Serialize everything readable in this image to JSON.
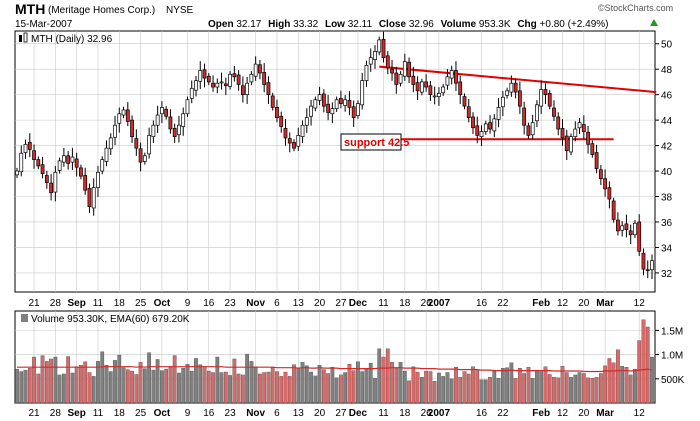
{
  "header": {
    "symbol": "MTH",
    "company": "(Meritage Homes Corp.)",
    "exchange": "NYSE",
    "date": "15-Mar-2007",
    "watermark": "©StockCharts.com",
    "stats": [
      {
        "label": "Open",
        "value": "32.17"
      },
      {
        "label": "High",
        "value": "33.32"
      },
      {
        "label": "Low",
        "value": "32.11"
      },
      {
        "label": "Close",
        "value": "32.96"
      },
      {
        "label": "Volume",
        "value": "953.3K"
      },
      {
        "label": "Chg",
        "value": "+0.80 (+2.49%)"
      }
    ],
    "chg_arrow": "up-triangle-icon"
  },
  "price_panel": {
    "legend": "MTH (Daily) 32.96",
    "legend_icon": "candlestick-icon",
    "y_ticks": [
      "32",
      "34",
      "36",
      "38",
      "40",
      "42",
      "44",
      "46",
      "48",
      "50"
    ],
    "annotation": "support 42.5"
  },
  "volume_panel": {
    "legend": "Volume 953.30K, EMA(60) 679.20K",
    "y_ticks": [
      "500K",
      "1.0M",
      "1.5M"
    ]
  },
  "x_axis": {
    "labels": [
      "21",
      "28",
      "Sep",
      "11",
      "18",
      "25",
      "Oct",
      "9",
      "16",
      "23",
      "Nov",
      "6",
      "13",
      "20",
      "27",
      "Dec",
      "11",
      "18",
      "26",
      "2007",
      "16",
      "22",
      "Feb",
      "12",
      "20",
      "Mar",
      "12"
    ],
    "bold_labels": [
      "Sep",
      "Oct",
      "Nov",
      "Dec",
      "2007",
      "Feb",
      "Mar"
    ]
  },
  "colors": {
    "up": "#ffffff",
    "down": "#d42a2a",
    "candle_outline": "#000000",
    "volume_up": "#808080",
    "volume_down": "#d96a6a",
    "ema": "#d42a2a",
    "trendline": "#e00000",
    "annotation_text": "#e00000",
    "grid": "#c8c8c8"
  },
  "chart_data": [
    {
      "type": "candlestick",
      "title": "MTH (Daily)",
      "ylim": [
        30.5,
        51
      ],
      "y_ticks": [
        32,
        34,
        36,
        38,
        40,
        42,
        44,
        46,
        48,
        50
      ],
      "x_ticks": [
        "21",
        "28",
        "Sep",
        "11",
        "18",
        "25",
        "Oct",
        "9",
        "16",
        "23",
        "Nov",
        "6",
        "13",
        "20",
        "27",
        "Dec",
        "11",
        "18",
        "26",
        "2007",
        "16",
        "22",
        "Feb",
        "12",
        "20",
        "Mar",
        "12"
      ],
      "grid": true,
      "close": [
        40.0,
        41.4,
        42.1,
        41.7,
        40.9,
        40.4,
        39.8,
        39.1,
        38.3,
        39.9,
        40.8,
        41.2,
        40.6,
        41.1,
        40.3,
        39.6,
        38.5,
        37.2,
        38.7,
        39.9,
        40.9,
        41.8,
        42.6,
        43.6,
        44.5,
        44.8,
        43.9,
        42.7,
        41.8,
        40.7,
        41.2,
        42.8,
        43.6,
        44.4,
        45.0,
        44.3,
        43.3,
        42.7,
        43.6,
        44.5,
        45.6,
        46.5,
        47.1,
        47.9,
        47.3,
        47.0,
        46.6,
        46.9,
        47.0,
        46.7,
        47.6,
        47.4,
        46.8,
        46.0,
        46.9,
        47.6,
        48.4,
        47.7,
        46.8,
        46.0,
        45.0,
        44.2,
        43.5,
        42.6,
        42.2,
        41.8,
        42.8,
        43.6,
        44.2,
        45.1,
        45.6,
        46.0,
        45.1,
        44.6,
        44.9,
        45.6,
        45.3,
        45.6,
        45.0,
        44.2,
        45.3,
        47.1,
        48.3,
        48.9,
        49.4,
        50.3,
        48.9,
        48.1,
        47.7,
        46.8,
        47.6,
        48.6,
        47.4,
        46.8,
        46.3,
        47.0,
        46.6,
        46.0,
        45.9,
        46.1,
        46.6,
        47.4,
        47.9,
        46.9,
        46.0,
        45.1,
        44.2,
        43.4,
        42.8,
        43.1,
        43.7,
        43.3,
        44.1,
        45.0,
        45.8,
        46.3,
        46.9,
        46.2,
        45.1,
        43.6,
        42.8,
        43.8,
        45.2,
        46.4,
        46.0,
        45.1,
        44.3,
        43.3,
        42.6,
        41.6,
        42.7,
        43.3,
        43.8,
        43.1,
        42.1,
        41.3,
        40.2,
        39.4,
        38.6,
        37.8,
        36.2,
        35.3,
        35.7,
        35.4,
        35.0,
        35.9,
        33.7,
        32.3,
        32.2,
        32.96
      ],
      "annotations": [
        "support 42.5"
      ],
      "trendlines": [
        {
          "name": "resistance",
          "start": [
            85,
            48.2
          ],
          "end": [
            150,
            46.2
          ]
        },
        {
          "name": "support",
          "start": [
            85,
            42.5
          ],
          "end": [
            140,
            42.5
          ]
        }
      ]
    },
    {
      "type": "bar",
      "title": "Volume",
      "legend": "Volume 953.30K, EMA(60) 679.20K",
      "y_ticks": [
        "500K",
        "1.0M",
        "1.5M"
      ],
      "ylim": [
        0,
        1.9
      ],
      "volume_millions": [
        0.7,
        0.65,
        0.68,
        0.72,
        0.95,
        0.6,
        0.98,
        0.86,
        0.91,
        0.95,
        0.58,
        0.6,
        0.96,
        0.62,
        0.75,
        0.78,
        0.85,
        0.63,
        0.55,
        0.86,
        1.06,
        0.78,
        0.65,
        0.88,
        0.99,
        0.73,
        0.69,
        0.66,
        0.59,
        0.84,
        0.71,
        1.04,
        0.68,
        0.9,
        0.67,
        0.7,
        0.74,
        0.98,
        0.62,
        0.72,
        0.8,
        0.66,
        0.92,
        0.79,
        0.75,
        0.66,
        0.63,
        0.95,
        0.63,
        0.64,
        0.57,
        0.91,
        0.6,
        0.58,
        1.01,
        0.86,
        0.75,
        0.6,
        0.63,
        0.64,
        0.73,
        0.65,
        0.55,
        0.64,
        0.55,
        0.79,
        0.72,
        0.84,
        0.77,
        0.64,
        0.56,
        0.78,
        0.69,
        0.61,
        0.74,
        0.52,
        0.58,
        0.63,
        0.8,
        0.67,
        0.85,
        0.65,
        0.7,
        0.82,
        0.51,
        1.12,
        0.95,
        1.12,
        0.84,
        0.72,
        0.84,
        0.66,
        0.46,
        0.75,
        0.64,
        0.53,
        0.66,
        0.65,
        0.45,
        0.62,
        0.55,
        0.63,
        0.5,
        0.74,
        0.53,
        0.65,
        0.6,
        0.75,
        0.67,
        0.48,
        0.48,
        0.53,
        0.66,
        0.51,
        0.72,
        0.73,
        0.83,
        0.51,
        0.72,
        0.61,
        0.74,
        0.51,
        0.68,
        0.65,
        0.75,
        0.59,
        0.53,
        0.52,
        0.76,
        0.63,
        0.53,
        0.58,
        0.63,
        0.61,
        0.52,
        0.51,
        0.53,
        0.61,
        0.77,
        0.92,
        0.83,
        1.1,
        0.76,
        0.74,
        0.58,
        0.7,
        1.29,
        1.72,
        1.57,
        0.95
      ],
      "ema_millions": [
        0.74,
        0.74,
        0.74,
        0.74,
        0.74,
        0.74,
        0.74,
        0.74,
        0.74,
        0.74,
        0.74,
        0.74,
        0.74,
        0.74,
        0.74,
        0.74,
        0.74,
        0.74,
        0.74,
        0.74,
        0.75,
        0.75,
        0.75,
        0.75,
        0.75,
        0.75,
        0.75,
        0.75,
        0.74,
        0.75,
        0.74,
        0.75,
        0.75,
        0.75,
        0.75,
        0.75,
        0.75,
        0.75,
        0.75,
        0.75,
        0.75,
        0.75,
        0.75,
        0.75,
        0.75,
        0.75,
        0.75,
        0.75,
        0.75,
        0.74,
        0.74,
        0.74,
        0.74,
        0.74,
        0.74,
        0.74,
        0.74,
        0.74,
        0.74,
        0.74,
        0.74,
        0.73,
        0.73,
        0.73,
        0.73,
        0.73,
        0.72,
        0.73,
        0.73,
        0.72,
        0.72,
        0.73,
        0.72,
        0.72,
        0.72,
        0.72,
        0.71,
        0.71,
        0.71,
        0.71,
        0.71,
        0.71,
        0.71,
        0.71,
        0.71,
        0.72,
        0.72,
        0.72,
        0.73,
        0.73,
        0.73,
        0.72,
        0.72,
        0.72,
        0.72,
        0.71,
        0.71,
        0.71,
        0.71,
        0.7,
        0.7,
        0.7,
        0.7,
        0.7,
        0.69,
        0.69,
        0.69,
        0.69,
        0.69,
        0.68,
        0.68,
        0.68,
        0.67,
        0.67,
        0.67,
        0.67,
        0.68,
        0.67,
        0.67,
        0.67,
        0.67,
        0.67,
        0.67,
        0.67,
        0.67,
        0.67,
        0.66,
        0.66,
        0.66,
        0.66,
        0.66,
        0.66,
        0.66,
        0.65,
        0.65,
        0.65,
        0.65,
        0.65,
        0.66,
        0.66,
        0.66,
        0.67,
        0.67,
        0.67,
        0.66,
        0.67,
        0.68,
        0.69,
        0.7,
        0.68
      ]
    }
  ]
}
